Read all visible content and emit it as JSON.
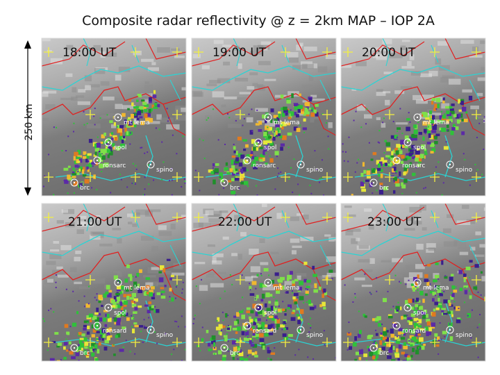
{
  "title": "Composite radar reflectivity @ z = 2km  MAP – IOP 2A",
  "scale_label": "250 km",
  "panels": [
    {
      "time": "18:00 UT",
      "stations": [
        "mt lema",
        "spol",
        "ronsarc",
        "spino",
        "brc"
      ]
    },
    {
      "time": "19:00 UT",
      "stations": [
        "mt lema",
        "spol",
        "ronsarc",
        "spino",
        "brc"
      ]
    },
    {
      "time": "20:00 UT",
      "stations": [
        "mt lema",
        "spol",
        "ronsarc",
        "spino",
        "brc"
      ]
    },
    {
      "time": "21:00 UT",
      "stations": [
        "mt lema",
        "spol",
        "ronsard",
        "spino",
        "brc"
      ]
    },
    {
      "time": "22:00 UT",
      "stations": [
        "mt lema",
        "spol",
        "ronsard",
        "spino",
        "brc"
      ]
    },
    {
      "time": "23:00 UT",
      "stations": [
        "mt lema",
        "spol",
        "ronsard",
        "spino",
        "brc"
      ]
    }
  ]
}
